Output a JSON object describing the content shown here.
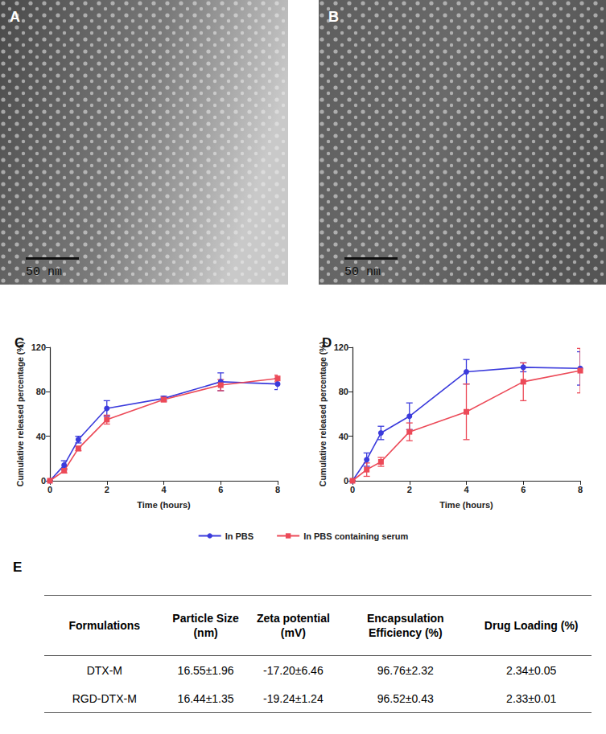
{
  "images": [
    {
      "label": "A",
      "scale_bar": "50 nm"
    },
    {
      "label": "B",
      "scale_bar": "50 nm"
    }
  ],
  "chart_data": [
    {
      "type": "line",
      "label": "C",
      "x_label": "Time (hours)",
      "y_label": "Cumulative released percentage (%)",
      "x": [
        0,
        0.5,
        1,
        2,
        4,
        6,
        8
      ],
      "xlim": [
        0,
        8
      ],
      "xticks": [
        0,
        2,
        4,
        6,
        8
      ],
      "ylim": [
        0,
        120
      ],
      "yticks": [
        0,
        40,
        80,
        120
      ],
      "grid": false,
      "legend": "bottom",
      "series": [
        {
          "name": "In PBS",
          "color": "#3b3bdc",
          "marker": "circle",
          "values": [
            0,
            14,
            37,
            65,
            74,
            89,
            87
          ],
          "errors": [
            0,
            4,
            3,
            7,
            2,
            8,
            5
          ]
        },
        {
          "name": "In PBS containing serum",
          "color": "#ec4a58",
          "marker": "square",
          "values": [
            0,
            9,
            29,
            55,
            73,
            86,
            92
          ],
          "errors": [
            0,
            2,
            2,
            4,
            2,
            5,
            3
          ]
        }
      ]
    },
    {
      "type": "line",
      "label": "D",
      "x_label": "Time (hours)",
      "y_label": "Cumulative released percentage (%)",
      "x": [
        0,
        0.5,
        1,
        2,
        4,
        6,
        8
      ],
      "xlim": [
        0,
        8
      ],
      "xticks": [
        0,
        2,
        4,
        6,
        8
      ],
      "ylim": [
        0,
        120
      ],
      "yticks": [
        0,
        40,
        80,
        120
      ],
      "grid": false,
      "legend": "bottom",
      "series": [
        {
          "name": "In PBS",
          "color": "#3b3bdc",
          "marker": "circle",
          "values": [
            0,
            19,
            43,
            58,
            98,
            102,
            101
          ],
          "errors": [
            0,
            6,
            6,
            12,
            11,
            4,
            15
          ]
        },
        {
          "name": "In PBS containing serum",
          "color": "#ec4a58",
          "marker": "square",
          "values": [
            0,
            10,
            17,
            44,
            62,
            89,
            99
          ],
          "errors": [
            0,
            6,
            4,
            8,
            25,
            17,
            20
          ]
        }
      ]
    }
  ],
  "table": {
    "label": "E",
    "header": [
      "Formulations",
      "Particle Size (nm)",
      "Zeta potential (mV)",
      "Encapsulation Efficiency (%)",
      "Drug Loading (%)"
    ],
    "rows": [
      [
        "DTX-M",
        "16.55±1.96",
        "-17.20±6.46",
        "96.76±2.32",
        "2.34±0.05"
      ],
      [
        "RGD-DTX-M",
        "16.44±1.35",
        "-19.24±1.24",
        "96.52±0.43",
        "2.33±0.01"
      ]
    ]
  }
}
